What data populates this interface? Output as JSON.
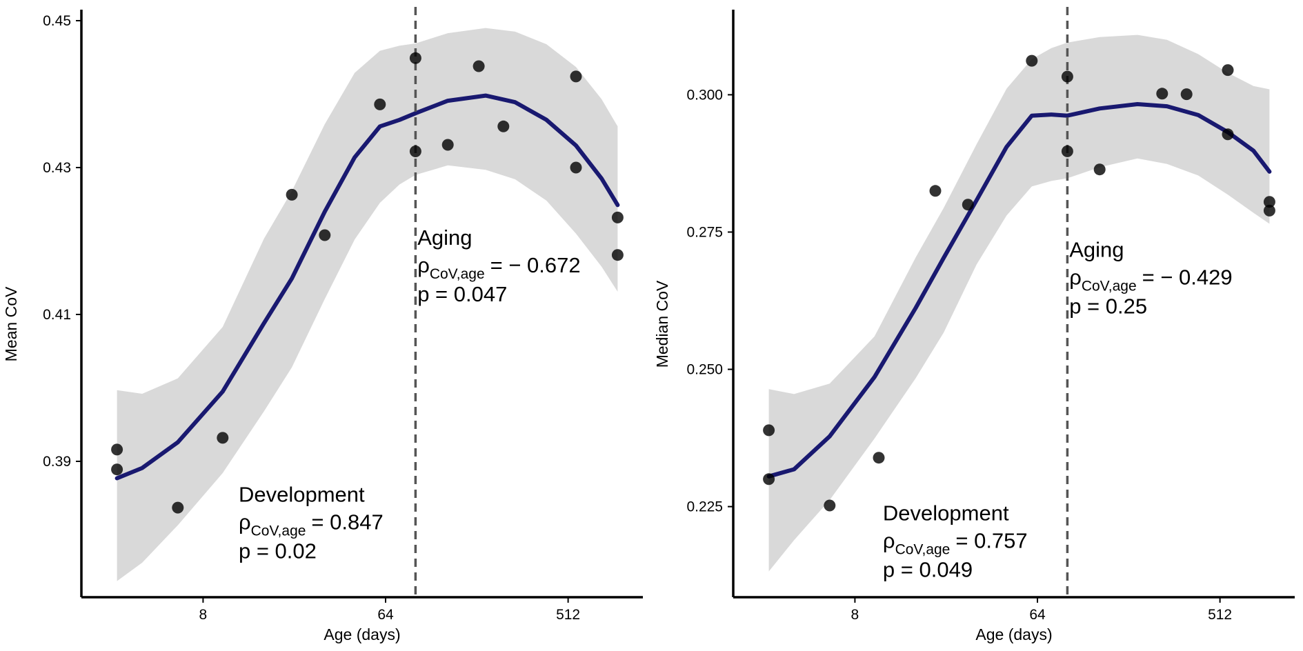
{
  "colors": {
    "fit_line": "#191970",
    "ribbon": "#d9d9d9",
    "point_dark": "#000000",
    "point_overlap": "#3a3a3a",
    "divider": "#555555"
  },
  "chart_data": [
    {
      "type": "scatter",
      "xlabel": "Age (days)",
      "ylabel": "Mean CoV",
      "x_scale": "log2",
      "x_ticks": [
        8,
        64,
        512
      ],
      "x_tick_labels": [
        "8",
        "64",
        "512"
      ],
      "xlim": [
        2,
        1200
      ],
      "y_ticks": [
        0.39,
        0.41,
        0.43,
        0.45
      ],
      "y_tick_labels": [
        "0.39",
        "0.41",
        "0.43",
        "0.45"
      ],
      "ylim": [
        0.3715,
        0.4515
      ],
      "grid": false,
      "legend": "none",
      "divider_x": 90,
      "points": [
        {
          "x": 3,
          "y": 0.3916
        },
        {
          "x": 3,
          "y": 0.3889
        },
        {
          "x": 6,
          "y": 0.3837
        },
        {
          "x": 10,
          "y": 0.3932
        },
        {
          "x": 22,
          "y": 0.4263
        },
        {
          "x": 32,
          "y": 0.4208
        },
        {
          "x": 60,
          "y": 0.4386
        },
        {
          "x": 90,
          "y": 0.4449
        },
        {
          "x": 90,
          "y": 0.4322
        },
        {
          "x": 130,
          "y": 0.4331
        },
        {
          "x": 185,
          "y": 0.4438
        },
        {
          "x": 245,
          "y": 0.4356
        },
        {
          "x": 560,
          "y": 0.4424
        },
        {
          "x": 560,
          "y": 0.43
        },
        {
          "x": 900,
          "y": 0.4232
        },
        {
          "x": 900,
          "y": 0.4181
        }
      ],
      "fit": {
        "x": [
          3,
          4,
          6,
          10,
          16,
          22,
          32,
          45,
          60,
          75,
          90,
          130,
          200,
          280,
          400,
          560,
          750,
          900
        ],
        "y": [
          0.3877,
          0.3891,
          0.3926,
          0.3995,
          0.4088,
          0.4149,
          0.424,
          0.4314,
          0.4356,
          0.4365,
          0.4374,
          0.4391,
          0.4398,
          0.4389,
          0.4365,
          0.433,
          0.4285,
          0.4249
        ],
        "lower": [
          0.3737,
          0.3762,
          0.3813,
          0.3884,
          0.3968,
          0.4028,
          0.4121,
          0.4202,
          0.4252,
          0.4277,
          0.429,
          0.4303,
          0.4297,
          0.4284,
          0.4255,
          0.421,
          0.4165,
          0.4131
        ],
        "upper": [
          0.3997,
          0.3992,
          0.4013,
          0.4083,
          0.4203,
          0.4268,
          0.4359,
          0.4429,
          0.4459,
          0.4466,
          0.4469,
          0.4483,
          0.449,
          0.4485,
          0.4468,
          0.4437,
          0.4393,
          0.4356
        ]
      },
      "annotations": [
        {
          "title": "Development",
          "rho_symbol": "ρ",
          "rho_subscript": "CoV,age",
          "rho_value": "= 0.847",
          "p": "p = 0.02",
          "x": 12,
          "y": 0.3845
        },
        {
          "title": "Aging",
          "rho_symbol": "ρ",
          "rho_subscript": "CoV,age",
          "rho_value": "= − 0.672",
          "p": "p = 0.047",
          "x": 92,
          "y": 0.4195
        }
      ]
    },
    {
      "type": "scatter",
      "xlabel": "Age (days)",
      "ylabel": "Median CoV",
      "x_scale": "log2",
      "x_ticks": [
        8,
        64,
        512
      ],
      "x_tick_labels": [
        "8",
        "64",
        "512"
      ],
      "xlim": [
        2,
        1200
      ],
      "y_ticks": [
        0.225,
        0.25,
        0.275,
        0.3
      ],
      "y_tick_labels": [
        "0.225",
        "0.250",
        "0.275",
        "0.300"
      ],
      "ylim": [
        0.2085,
        0.3155
      ],
      "grid": false,
      "legend": "none",
      "divider_x": 90,
      "points": [
        {
          "x": 3,
          "y": 0.2389
        },
        {
          "x": 3,
          "y": 0.23
        },
        {
          "x": 6,
          "y": 0.2252
        },
        {
          "x": 10.5,
          "y": 0.2339
        },
        {
          "x": 20,
          "y": 0.2825
        },
        {
          "x": 29,
          "y": 0.28
        },
        {
          "x": 60,
          "y": 0.3062
        },
        {
          "x": 90,
          "y": 0.3033
        },
        {
          "x": 90,
          "y": 0.2897
        },
        {
          "x": 130,
          "y": 0.2864
        },
        {
          "x": 265,
          "y": 0.3002
        },
        {
          "x": 350,
          "y": 0.3001
        },
        {
          "x": 560,
          "y": 0.3045
        },
        {
          "x": 560,
          "y": 0.2928
        },
        {
          "x": 900,
          "y": 0.2805
        },
        {
          "x": 900,
          "y": 0.2789
        }
      ],
      "fit": {
        "x": [
          3,
          4,
          6,
          10,
          16,
          22,
          32,
          45,
          60,
          75,
          90,
          130,
          200,
          280,
          400,
          560,
          750,
          900
        ],
        "y": [
          0.2305,
          0.2318,
          0.2378,
          0.2486,
          0.2612,
          0.2703,
          0.2808,
          0.2905,
          0.2962,
          0.2964,
          0.2962,
          0.2975,
          0.2983,
          0.2979,
          0.2963,
          0.2932,
          0.2898,
          0.286
        ],
        "lower": [
          0.2132,
          0.2189,
          0.2262,
          0.2374,
          0.2484,
          0.2567,
          0.2691,
          0.278,
          0.2833,
          0.2843,
          0.2848,
          0.2868,
          0.2884,
          0.2874,
          0.2853,
          0.2818,
          0.2785,
          0.2765
        ],
        "upper": [
          0.2464,
          0.2455,
          0.2474,
          0.256,
          0.2704,
          0.2794,
          0.291,
          0.3011,
          0.3065,
          0.3085,
          0.3095,
          0.3105,
          0.3109,
          0.31,
          0.3074,
          0.304,
          0.3016,
          0.301
        ]
      },
      "annotations": [
        {
          "title": "Development",
          "rho_symbol": "ρ",
          "rho_subscript": "CoV,age",
          "rho_value": "= 0.757",
          "p": "p = 0.049",
          "x": 11,
          "y": 0.2225
        },
        {
          "title": "Aging",
          "rho_symbol": "ρ",
          "rho_subscript": "CoV,age",
          "rho_value": "= − 0.429",
          "p": "p = 0.25",
          "x": 92,
          "y": 0.2705
        }
      ]
    }
  ]
}
